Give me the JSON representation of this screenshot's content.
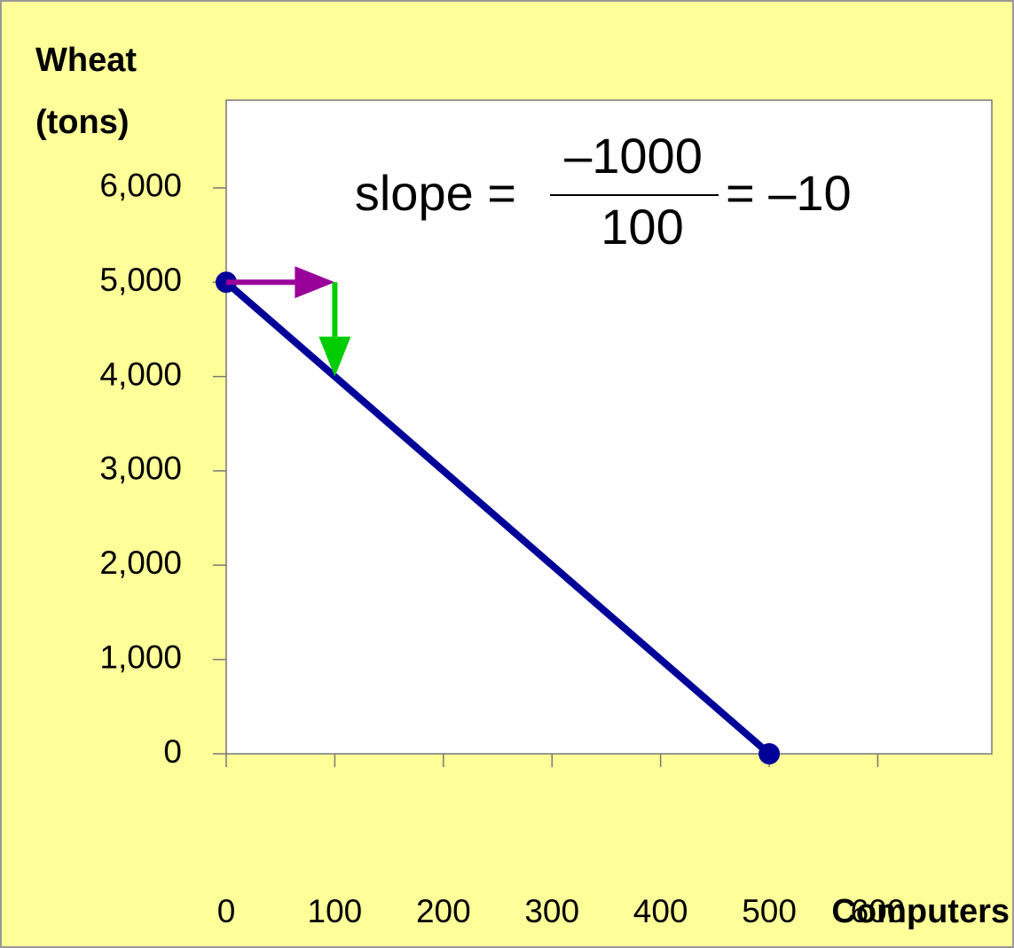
{
  "chart_data": {
    "type": "line",
    "y_label": [
      "Wheat",
      "(tons)"
    ],
    "x_label": "Computers",
    "x": [
      0,
      500
    ],
    "series": [
      {
        "color": "#000099",
        "values": [
          5000,
          0
        ]
      }
    ],
    "xlim": [
      0,
      705
    ],
    "ylim": [
      0,
      6930
    ],
    "xticks": [
      0,
      100,
      200,
      300,
      400,
      500,
      600
    ],
    "yticks": [
      0,
      {
        "value": 1000,
        "label": "1,000"
      },
      {
        "value": 2000,
        "label": "2,000"
      },
      {
        "value": 3000,
        "label": "3,000"
      },
      {
        "value": 4000,
        "label": "4,000"
      },
      {
        "value": 5000,
        "label": "5,000"
      },
      {
        "value": 6000,
        "label": "6,000"
      }
    ],
    "arrows": [
      {
        "x": [
          0,
          100
        ],
        "y": [
          5000,
          5000
        ],
        "color": "#990099"
      },
      {
        "x": [
          100,
          100
        ],
        "y": [
          5000,
          4000
        ],
        "color": "#00cc00"
      }
    ],
    "annotation": {
      "left": "slope =",
      "numerator": "–1000",
      "numerator_color": "#00cc00",
      "denominator": "100",
      "denominator_color": "#990099",
      "right": "= –10"
    }
  }
}
